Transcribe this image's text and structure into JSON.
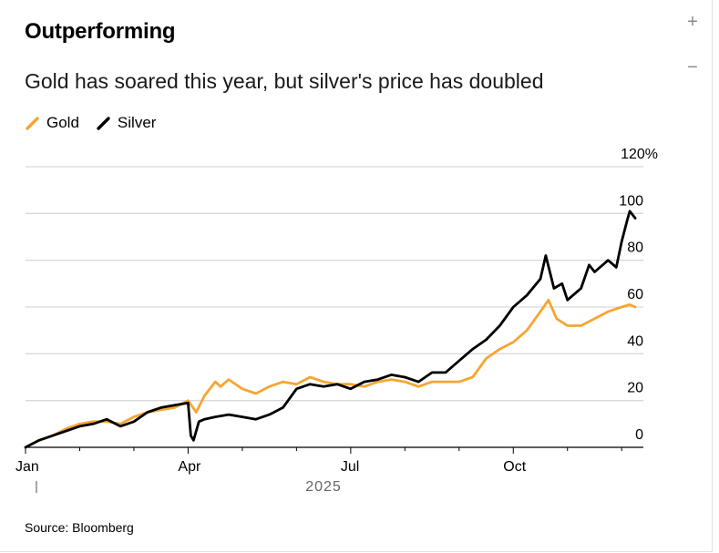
{
  "title": "Outperforming",
  "subtitle": "Gold has soared this year, but silver's price has doubled",
  "source": "Source: Bloomberg",
  "controls": {
    "zoom_in": "+",
    "zoom_out": "−"
  },
  "colors": {
    "gold": "#f7a532",
    "silver": "#000000",
    "grid": "#d9d9d9",
    "axis": "#000000"
  },
  "chart_data": {
    "type": "line",
    "title": "Outperforming",
    "subtitle": "Gold has soared this year, but silver's price has doubled",
    "xlabel": "2025",
    "ylabel": "",
    "ylim": [
      0,
      120
    ],
    "xlim": [
      0,
      11.4
    ],
    "y_ticks": [
      0,
      20,
      40,
      60,
      80,
      100,
      120
    ],
    "y_tick_labels": [
      "0",
      "20",
      "40",
      "60",
      "80",
      "100",
      "120%"
    ],
    "x_ticks": [
      0,
      3,
      6,
      9
    ],
    "x_tick_labels": [
      "Jan",
      "Apr",
      "Jul",
      "Oct"
    ],
    "year_label": "2025",
    "legend": [
      "Gold",
      "Silver"
    ],
    "legend_position": "top-left",
    "grid": true,
    "series": [
      {
        "name": "Gold",
        "color": "#f7a532",
        "x": [
          0.0,
          0.25,
          0.5,
          0.75,
          1.0,
          1.25,
          1.5,
          1.75,
          2.0,
          2.25,
          2.5,
          2.75,
          3.0,
          3.15,
          3.3,
          3.5,
          3.6,
          3.75,
          4.0,
          4.25,
          4.5,
          4.75,
          5.0,
          5.25,
          5.5,
          5.75,
          6.0,
          6.25,
          6.5,
          6.75,
          7.0,
          7.25,
          7.5,
          7.75,
          8.0,
          8.25,
          8.5,
          8.75,
          9.0,
          9.25,
          9.5,
          9.65,
          9.8,
          10.0,
          10.25,
          10.5,
          10.75,
          11.0,
          11.15,
          11.25
        ],
        "values": [
          0,
          3,
          5,
          8,
          10,
          11,
          11,
          10,
          13,
          15,
          16,
          17,
          20,
          15,
          22,
          28,
          26,
          29,
          25,
          23,
          26,
          28,
          27,
          30,
          28,
          27,
          27,
          26,
          28,
          29,
          28,
          26,
          28,
          28,
          28,
          30,
          38,
          42,
          45,
          50,
          58,
          63,
          55,
          52,
          52,
          55,
          58,
          60,
          61,
          60
        ]
      },
      {
        "name": "Silver",
        "color": "#000000",
        "x": [
          0.0,
          0.25,
          0.5,
          0.75,
          1.0,
          1.25,
          1.5,
          1.75,
          2.0,
          2.25,
          2.5,
          2.75,
          3.0,
          3.05,
          3.1,
          3.2,
          3.3,
          3.5,
          3.75,
          4.0,
          4.25,
          4.5,
          4.75,
          5.0,
          5.25,
          5.5,
          5.75,
          6.0,
          6.25,
          6.5,
          6.75,
          7.0,
          7.25,
          7.5,
          7.75,
          8.0,
          8.25,
          8.5,
          8.75,
          9.0,
          9.25,
          9.5,
          9.6,
          9.75,
          9.9,
          10.0,
          10.25,
          10.4,
          10.5,
          10.75,
          10.9,
          11.0,
          11.1,
          11.15,
          11.25
        ],
        "values": [
          0,
          3,
          5,
          7,
          9,
          10,
          12,
          9,
          11,
          15,
          17,
          18,
          19,
          5,
          3,
          11,
          12,
          13,
          14,
          13,
          12,
          14,
          17,
          25,
          27,
          26,
          27,
          25,
          28,
          29,
          31,
          30,
          28,
          32,
          32,
          37,
          42,
          46,
          52,
          60,
          65,
          72,
          82,
          68,
          70,
          63,
          68,
          78,
          75,
          80,
          77,
          88,
          97,
          101,
          98
        ]
      }
    ]
  }
}
